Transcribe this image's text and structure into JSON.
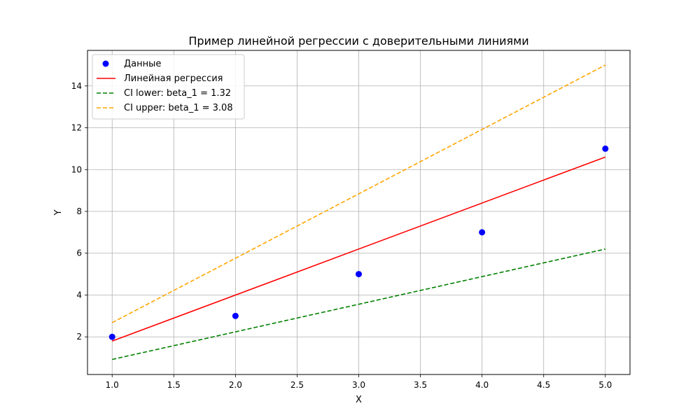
{
  "chart_data": {
    "type": "scatter",
    "title": "Пример линейной регрессии с доверительными линиями",
    "xlabel": "X",
    "ylabel": "Y",
    "xlim": [
      0.8,
      5.2
    ],
    "ylim": [
      0.2,
      15.7
    ],
    "xticks": [
      1.0,
      1.5,
      2.0,
      2.5,
      3.0,
      3.5,
      4.0,
      4.5,
      5.0
    ],
    "xtick_labels": [
      "1.0",
      "1.5",
      "2.0",
      "2.5",
      "3.0",
      "3.5",
      "4.0",
      "4.5",
      "5.0"
    ],
    "yticks": [
      2,
      4,
      6,
      8,
      10,
      12,
      14
    ],
    "ytick_labels": [
      "2",
      "4",
      "6",
      "8",
      "10",
      "12",
      "14"
    ],
    "grid": true,
    "legend_position": "top-left",
    "series": [
      {
        "name": "Данные",
        "kind": "scatter",
        "color": "#0000ff",
        "x": [
          1,
          2,
          3,
          4,
          5
        ],
        "y": [
          2,
          3,
          5,
          7,
          11
        ]
      },
      {
        "name": "Линейная регрессия",
        "kind": "line",
        "color": "#ff0000",
        "dash": "solid",
        "x": [
          1,
          5
        ],
        "y": [
          1.8,
          10.6
        ]
      },
      {
        "name": "CI lower: beta_1 = 1.32",
        "kind": "line",
        "color": "#008000",
        "dash": "dashed",
        "x": [
          1,
          5
        ],
        "y": [
          0.92,
          6.2
        ]
      },
      {
        "name": "CI upper: beta_1 = 3.08",
        "kind": "line",
        "color": "#ffa500",
        "dash": "dashed",
        "x": [
          1,
          5
        ],
        "y": [
          2.68,
          15.0
        ]
      }
    ]
  }
}
